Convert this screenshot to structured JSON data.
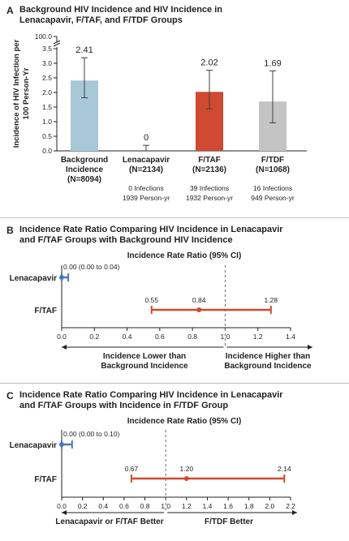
{
  "panels": {
    "a": {
      "letter": "A",
      "title": "Background HIV Incidence and HIV Incidence in Lenacapavir, F/TAF, and F/TDF Groups"
    },
    "b": {
      "letter": "B",
      "title": "Incidence Rate Ratio Comparing HIV Incidence in Lenacapavir and F/TAF Groups with Background HIV Incidence"
    },
    "c": {
      "letter": "C",
      "title": "Incidence Rate Ratio Comparing HIV Incidence in Lenacapavir and F/TAF Groups with Incidence in F/TDF Group"
    }
  },
  "chart_data": [
    {
      "type": "bar",
      "title": "Background HIV Incidence and HIV Incidence in Lenacapavir, F/TAF, and F/TDF Groups",
      "ylabel": "Incidence of HIV Infection per 100 Person-Yr",
      "ylim": [
        0,
        3.5
      ],
      "yticks": [
        "0.0",
        "0.5",
        "1.0",
        "1.5",
        "2.0",
        "2.5",
        "3.0",
        "3.5",
        "100.0"
      ],
      "axis_break": true,
      "categories": [
        {
          "name": "Background",
          "name2": "Incidence",
          "n": "(N=8094)",
          "value": 2.41,
          "label": "2.41",
          "ci": [
            1.82,
            3.19
          ],
          "color": "#a8c8d8",
          "note1": "",
          "note2": ""
        },
        {
          "name": "Lenacapavir",
          "name2": "",
          "n": "(N=2134)",
          "value": 0,
          "label": "0",
          "ci": [
            0,
            0.19
          ],
          "color": "#a8c8d8",
          "note1": "0 Infections",
          "note2": "1939 Person-yr"
        },
        {
          "name": "F/TAF",
          "name2": "",
          "n": "(N=2136)",
          "value": 2.02,
          "label": "2.02",
          "ci": [
            1.44,
            2.76
          ],
          "color": "#cf4a30",
          "note1": "39 Infections",
          "note2": "1932 Person-yr"
        },
        {
          "name": "F/TDF",
          "name2": "",
          "n": "(N=1068)",
          "value": 1.69,
          "label": "1.69",
          "ci": [
            0.96,
            2.74
          ],
          "color": "#c4c4c4",
          "note1": "16 Infections",
          "note2": "949 Person-yr"
        }
      ]
    },
    {
      "type": "forest",
      "title": "Incidence Rate Ratio (95% CI)",
      "xlim": [
        0,
        1.4
      ],
      "ticks": [
        "0.0",
        "0.2",
        "0.4",
        "0.6",
        "0.8",
        "1.0",
        "1.2",
        "1.4"
      ],
      "ref_line": 1.0,
      "rows": [
        {
          "label": "Lenacapavir",
          "est": 0.0,
          "lo": 0.0,
          "hi": 0.04,
          "text": "0.00 (0.00 to 0.04)",
          "color": "#4a78bf"
        },
        {
          "label": "F/TAF",
          "est": 0.84,
          "lo": 0.55,
          "hi": 1.28,
          "lo_text": "0.55",
          "est_text": "0.84",
          "hi_text": "1.28",
          "color": "#cf4a30"
        }
      ],
      "left_note": [
        "Incidence Lower than",
        "Background Incidence"
      ],
      "right_note": [
        "Incidence Higher than",
        "Background Incidence"
      ]
    },
    {
      "type": "forest",
      "title": "Incidence Rate Ratio (95% CI)",
      "xlim": [
        0,
        2.2
      ],
      "ticks": [
        "0.0",
        "0.2",
        "0.4",
        "0.6",
        "0.8",
        "1.0",
        "1.2",
        "1.4",
        "1.6",
        "1.8",
        "2.0",
        "2.2"
      ],
      "ref_line": 1.0,
      "rows": [
        {
          "label": "Lenacapavir",
          "est": 0.0,
          "lo": 0.0,
          "hi": 0.1,
          "text": "0.00 (0.00 to 0.10)",
          "color": "#4a78bf"
        },
        {
          "label": "F/TAF",
          "est": 1.2,
          "lo": 0.67,
          "hi": 2.14,
          "lo_text": "0.67",
          "est_text": "1.20",
          "hi_text": "2.14",
          "color": "#cf4a30"
        }
      ],
      "left_note": [
        "Lenacapavir or F/TAF Better"
      ],
      "right_note": [
        "F/TDF Better"
      ]
    }
  ]
}
